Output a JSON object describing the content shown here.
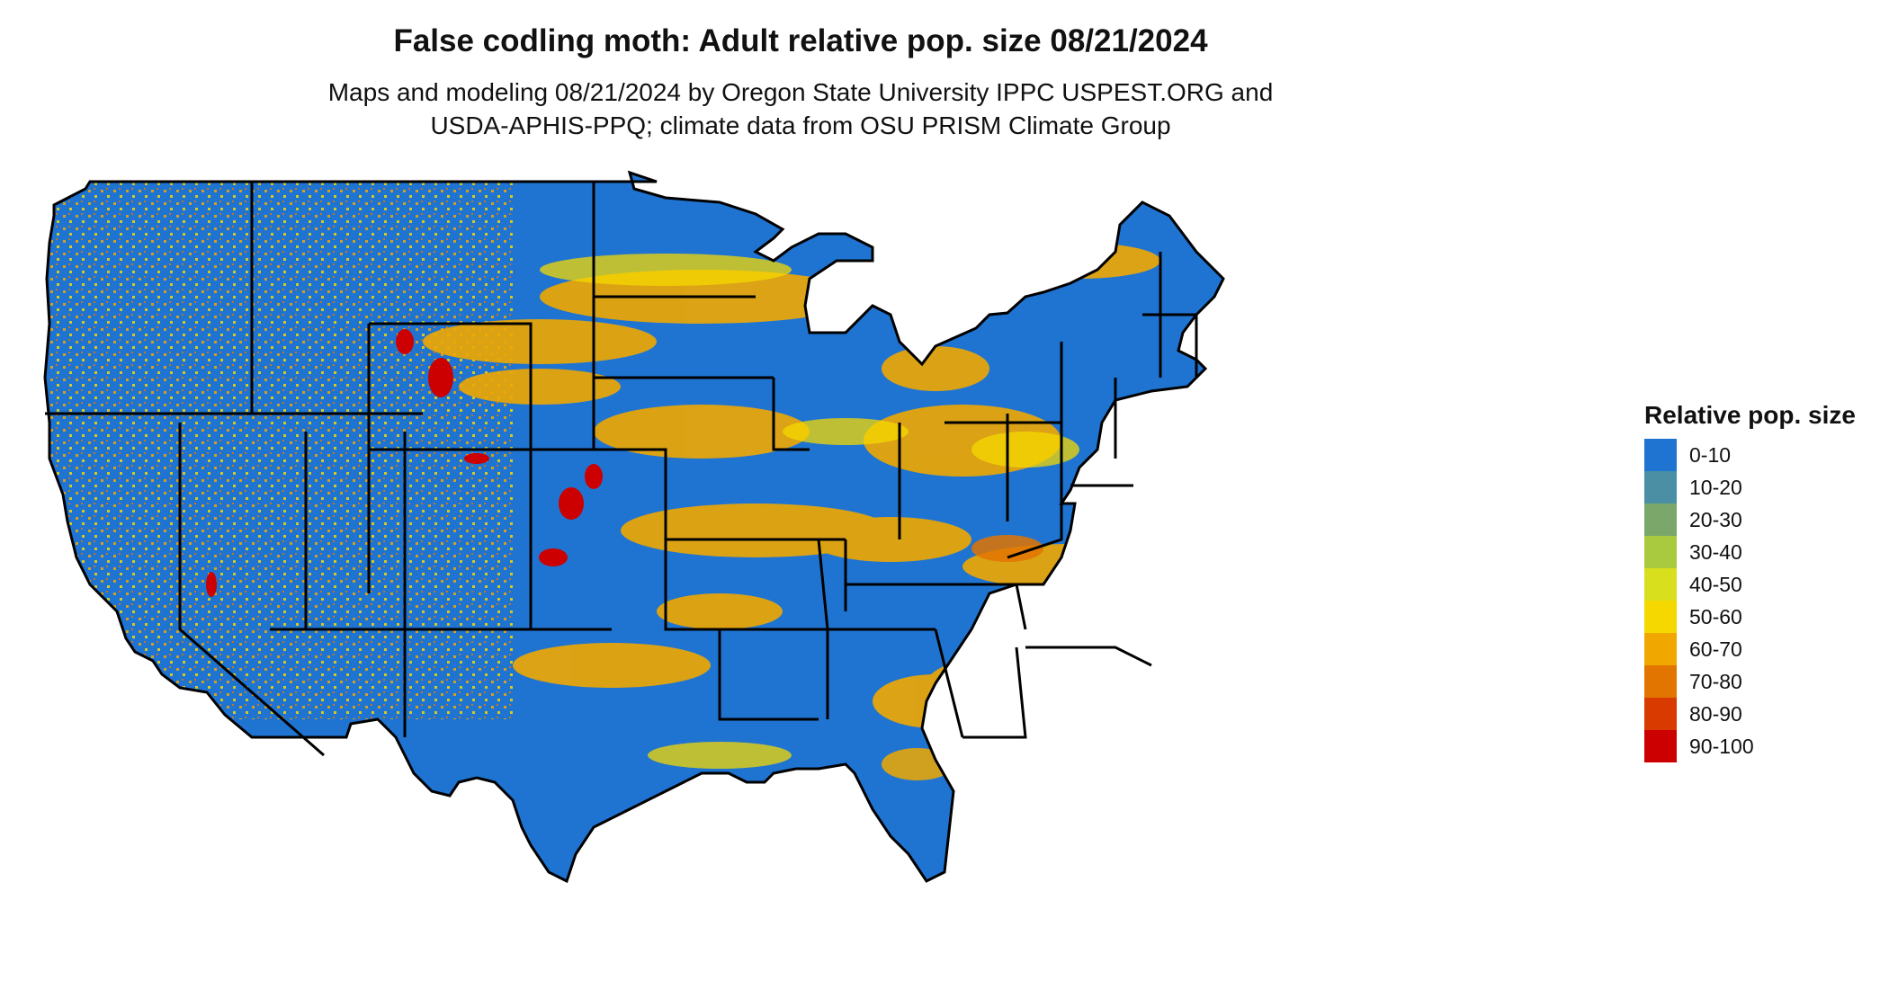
{
  "title": "False codling moth: Adult relative pop. size 08/21/2024",
  "subtitle_line1": "Maps and modeling 08/21/2024 by Oregon State University IPPC USPEST.ORG and",
  "subtitle_line2": "USDA-APHIS-PPQ; climate data from OSU PRISM Climate Group",
  "legend": {
    "title": "Relative pop. size",
    "items": [
      {
        "label": "0-10",
        "color": "#1f74d2"
      },
      {
        "label": "10-20",
        "color": "#4a8fa4"
      },
      {
        "label": "20-30",
        "color": "#7ba86a"
      },
      {
        "label": "30-40",
        "color": "#a9c93f"
      },
      {
        "label": "40-50",
        "color": "#d8e01d"
      },
      {
        "label": "50-60",
        "color": "#f5d800"
      },
      {
        "label": "60-70",
        "color": "#f0a800"
      },
      {
        "label": "70-80",
        "color": "#e27400"
      },
      {
        "label": "80-90",
        "color": "#d93a00"
      },
      {
        "label": "90-100",
        "color": "#cc0000"
      }
    ]
  }
}
